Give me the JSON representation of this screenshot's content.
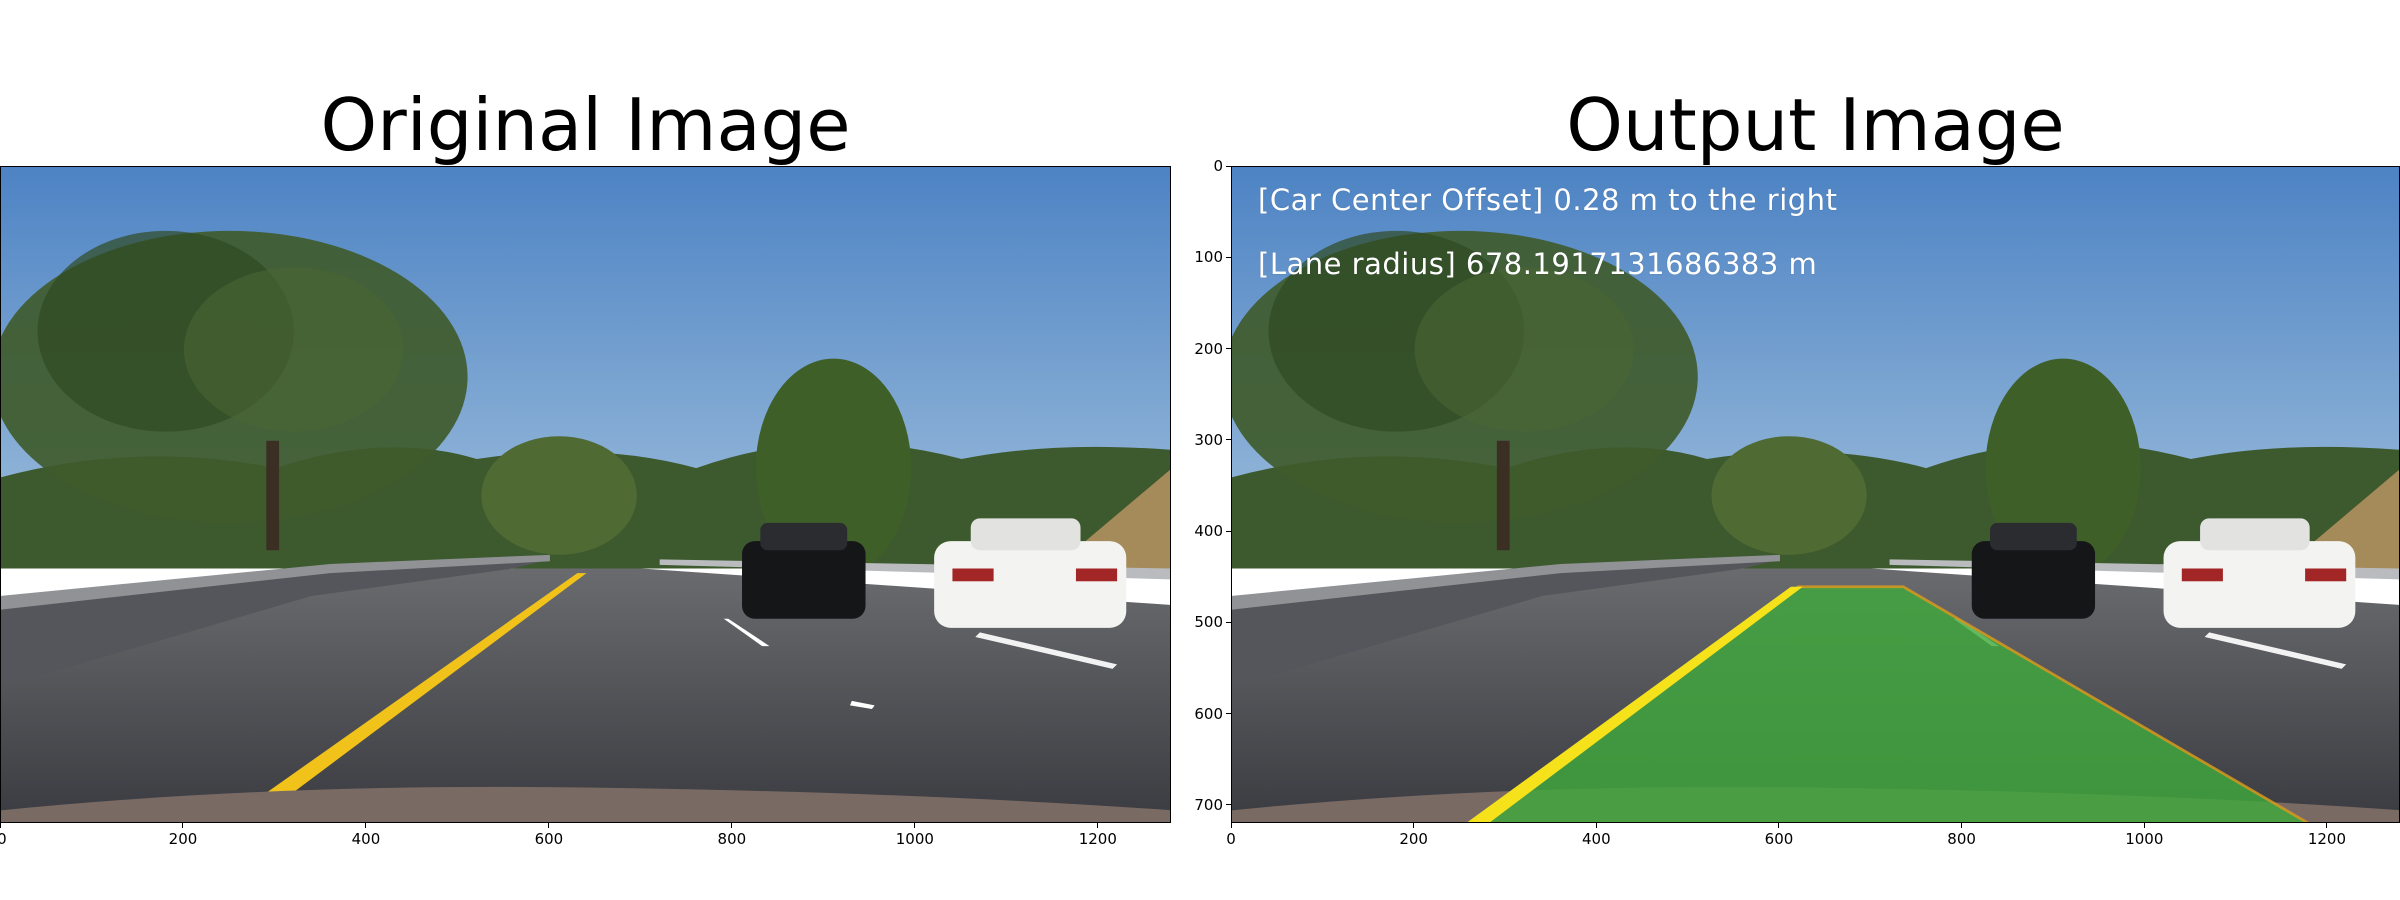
{
  "left_panel": {
    "title": "Original Image",
    "x_ticks": [
      "0",
      "200",
      "400",
      "600",
      "800",
      "1000",
      "1200"
    ]
  },
  "right_panel": {
    "title": "Output Image",
    "overlay": {
      "offset_text": "[Car Center Offset] 0.28 m to the right",
      "radius_text": "[Lane radius] 678.1917131686383 m"
    },
    "x_ticks": [
      "0",
      "200",
      "400",
      "600",
      "800",
      "1000",
      "1200"
    ],
    "y_ticks": [
      "0",
      "100",
      "200",
      "300",
      "400",
      "500",
      "600",
      "700"
    ]
  },
  "colors": {
    "sky": "#5e8fc9",
    "road": "#45474d",
    "lane_fill": "#3fa83c",
    "yellow_line": "#f1c21a"
  }
}
